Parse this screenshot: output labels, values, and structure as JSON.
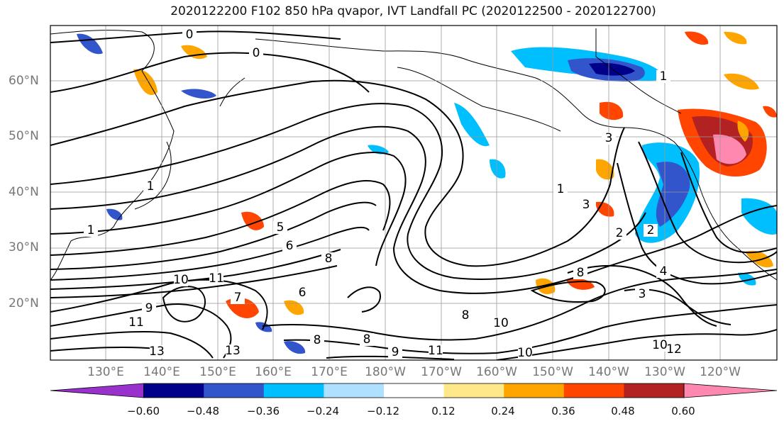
{
  "title": "2020122200 F102 850 hPa qvapor, IVT Landfall PC (2020122500 - 2020122700)",
  "lat_labels": [
    "60°N",
    "50°N",
    "40°N",
    "30°N",
    "20°N"
  ],
  "lon_labels": [
    "130°E",
    "140°E",
    "150°E",
    "160°E",
    "170°E",
    "180°W",
    "170°W",
    "160°W",
    "150°W",
    "140°W",
    "130°W",
    "120°W"
  ],
  "contour_labels": [
    "0",
    "0",
    "1",
    "1",
    "1",
    "1",
    "2",
    "2",
    "3",
    "3",
    "3",
    "4",
    "5",
    "6",
    "6",
    "7",
    "8",
    "8",
    "8",
    "8",
    "8",
    "9",
    "9",
    "10",
    "10",
    "10",
    "10",
    "11",
    "11",
    "11",
    "12",
    "13",
    "13"
  ],
  "colorbar": {
    "ticks": [
      "−0.60",
      "−0.48",
      "−0.36",
      "−0.24",
      "−0.12",
      "0.12",
      "0.24",
      "0.36",
      "0.48",
      "0.60"
    ],
    "colors": [
      "#9932cc",
      "#00008b",
      "#3355cc",
      "#00bfff",
      "#b0e0ff",
      "#ffffff",
      "#ffe88a",
      "#ffa500",
      "#ff4500",
      "#b22222",
      "#ff88b0"
    ]
  }
}
